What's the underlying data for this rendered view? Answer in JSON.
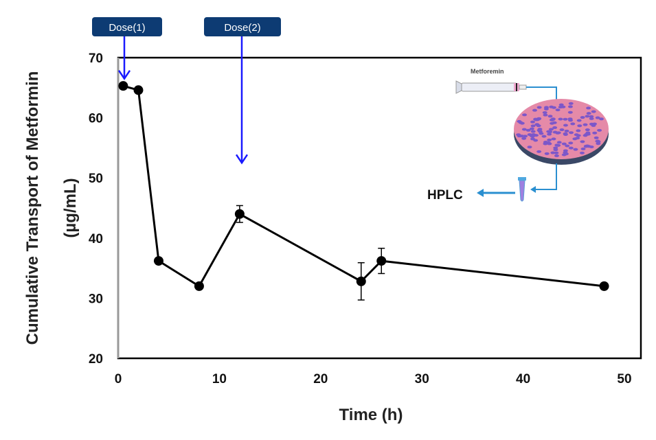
{
  "chart_data": {
    "type": "line",
    "title": "",
    "xlabel": "Time (h)",
    "ylabel_line1": "Cumulative Transport of  Metformin",
    "ylabel_line2": "(µg/mL)",
    "xlim": [
      0,
      51.5
    ],
    "ylim": [
      20,
      70
    ],
    "x_ticks": [
      0,
      10,
      20,
      30,
      40,
      50
    ],
    "y_ticks": [
      20,
      30,
      40,
      50,
      60,
      70
    ],
    "grid": false,
    "series": [
      {
        "name": "Metformin",
        "color": "#000000",
        "x": [
          0.5,
          2,
          4,
          8,
          12,
          24,
          26,
          48
        ],
        "y": [
          65.3,
          64.6,
          36.2,
          32.0,
          44.0,
          32.8,
          36.2,
          32.0
        ],
        "error": [
          0,
          0,
          0,
          0,
          1.4,
          3.1,
          2.1,
          0
        ]
      }
    ],
    "annotations": [
      {
        "label": "Dose(1)",
        "x": 0.5,
        "arrow_to_y": 66.5
      },
      {
        "label": "Dose(2)",
        "x": 12,
        "arrow_to_y": 52.5
      }
    ],
    "inset": {
      "syringe_label": "Metforemin",
      "output_label": "HPLC"
    },
    "colors": {
      "dose_box": "#0d3b73",
      "dose_arrow": "#1a1aff",
      "flow": "#2a8fd0",
      "tissue": "#e58aa8",
      "cells": "#6a4fcf"
    }
  }
}
